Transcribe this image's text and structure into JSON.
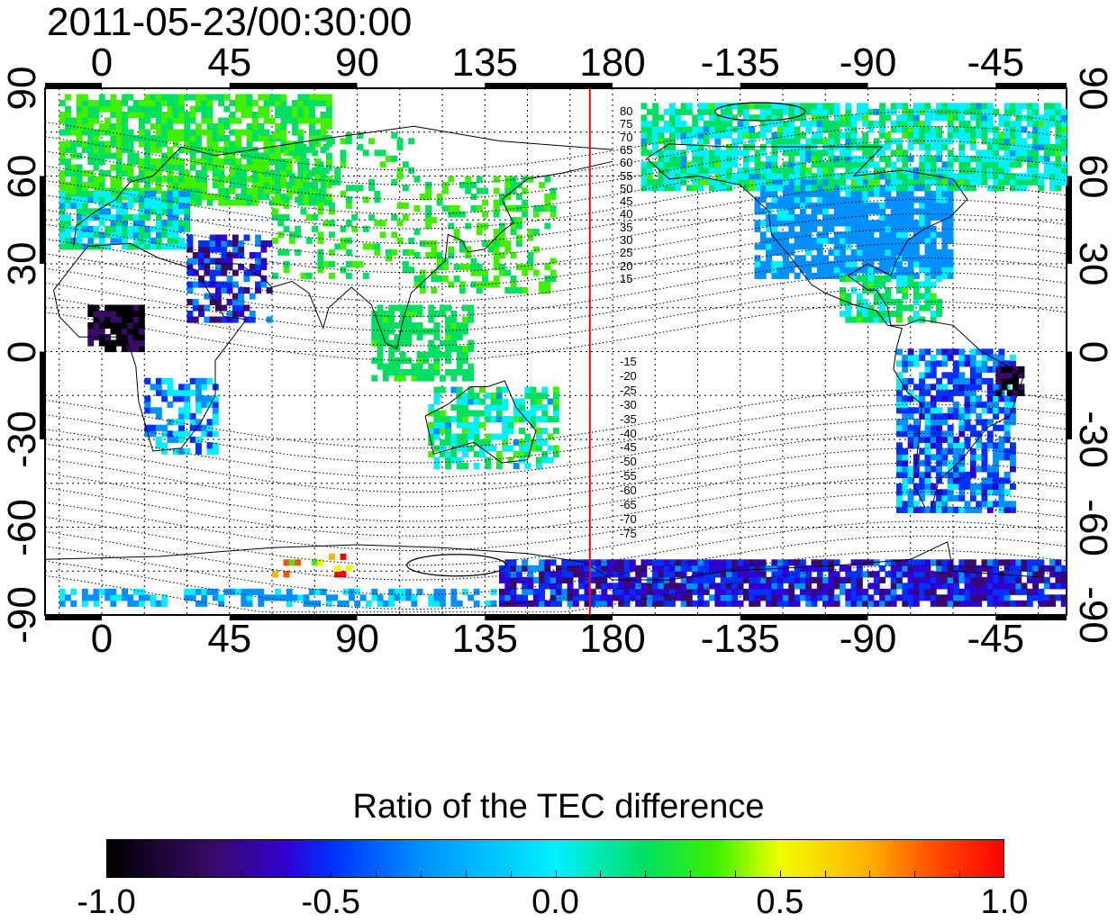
{
  "title": "2011-05-23/00:30:00",
  "map": {
    "lon_ticks_top": [
      "0",
      "45",
      "90",
      "135",
      "180",
      "-135",
      "-90",
      "-45"
    ],
    "lon_ticks_bottom": [
      "0",
      "45",
      "90",
      "135",
      "180",
      "-135",
      "-90",
      "-45"
    ],
    "lat_ticks_left": [
      "90",
      "60",
      "30",
      "0",
      "-30",
      "-60",
      "-90"
    ],
    "lat_ticks_right": [
      "90",
      "60",
      "30",
      "0",
      "-30",
      "-60",
      "-90"
    ],
    "lon_values": [
      0,
      45,
      90,
      135,
      180,
      -135,
      -90,
      -45
    ],
    "lat_values": [
      90,
      60,
      30,
      0,
      -30,
      -60,
      -90
    ],
    "lon_range": [
      -20,
      340
    ],
    "lat_range": [
      -90,
      90
    ],
    "meridian_line": {
      "lon": 172,
      "color": "#ff0000"
    },
    "contour_labels_north": [
      "80",
      "75",
      "70",
      "65",
      "60",
      "55",
      "50",
      "45",
      "40",
      "35",
      "30",
      "25",
      "20",
      "15"
    ],
    "contour_labels_south": [
      "-15",
      "-20",
      "-25",
      "-30",
      "-35",
      "-40",
      "-45",
      "-50",
      "-55",
      "-60",
      "-65",
      "-70",
      "-75"
    ]
  },
  "colorbar": {
    "title": "Ratio of the TEC difference",
    "range": [
      -1.0,
      1.0
    ],
    "tick_labels": [
      "-1.0",
      "-0.5",
      "0.0",
      "0.5",
      "1.0"
    ],
    "tick_values": [
      -1.0,
      -0.5,
      0.0,
      0.5,
      1.0
    ],
    "colormap": [
      "#000000",
      "#3a0a6a",
      "#3000d0",
      "#0030ff",
      "#0090ff",
      "#00f0ff",
      "#00e060",
      "#40f000",
      "#f0ff00",
      "#ffb000",
      "#ff5000",
      "#ff0000"
    ]
  }
}
